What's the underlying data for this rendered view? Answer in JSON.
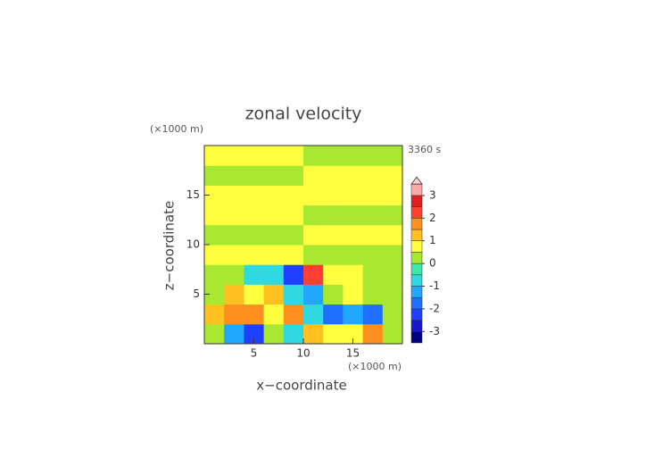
{
  "chart_data": {
    "type": "contour",
    "title": "zonal velocity",
    "time_label": "3360 s",
    "xlabel": "x−coordinate",
    "ylabel": "z−coordinate",
    "x_unit": "(×1000 m)",
    "y_unit": "(×1000 m)",
    "xlim": [
      0,
      20
    ],
    "ylim": [
      0,
      20
    ],
    "xticks": [
      5,
      10,
      15
    ],
    "yticks": [
      5,
      10,
      15
    ],
    "x": [
      1,
      3,
      5,
      7,
      9,
      11,
      13,
      15,
      17,
      19
    ],
    "y": [
      1,
      3,
      5,
      7,
      9,
      11,
      13,
      15,
      17,
      19
    ],
    "z": [
      [
        0.3,
        -1.2,
        -2.2,
        0.3,
        -0.7,
        1.2,
        0.7,
        0.7,
        1.7,
        0.3
      ],
      [
        1.2,
        1.7,
        1.7,
        0.7,
        1.7,
        -0.7,
        -1.7,
        -1.2,
        -1.7,
        0.3
      ],
      [
        0.3,
        1.2,
        0.7,
        1.2,
        -0.7,
        -1.2,
        0.3,
        0.7,
        0.3,
        0.3
      ],
      [
        0.3,
        0.3,
        -0.7,
        -0.7,
        -2.2,
        2.2,
        0.7,
        0.7,
        0.3,
        0.3
      ],
      [
        0.7,
        0.7,
        0.7,
        0.7,
        0.7,
        0.3,
        0.3,
        0.3,
        0.3,
        0.3
      ],
      [
        0.3,
        0.3,
        0.3,
        0.3,
        0.3,
        0.7,
        0.7,
        0.7,
        0.7,
        0.7
      ],
      [
        0.7,
        0.7,
        0.7,
        0.7,
        0.7,
        0.3,
        0.3,
        0.3,
        0.3,
        0.3
      ],
      [
        0.7,
        0.7,
        0.7,
        0.7,
        0.7,
        0.7,
        0.7,
        0.7,
        0.7,
        0.7
      ],
      [
        0.3,
        0.3,
        0.3,
        0.3,
        0.3,
        0.7,
        0.7,
        0.7,
        0.7,
        0.7
      ],
      [
        0.7,
        0.7,
        0.7,
        0.7,
        0.7,
        0.3,
        0.3,
        0.3,
        0.3,
        0.3
      ]
    ],
    "levels": [
      -3.5,
      -3,
      -2.5,
      -2,
      -1.5,
      -1,
      -0.5,
      0,
      0.5,
      1,
      1.5,
      2,
      2.5,
      3,
      3.5
    ],
    "colors": [
      "#000080",
      "#1818c8",
      "#2040ff",
      "#2070ff",
      "#20a8ff",
      "#30d8e0",
      "#40e8a8",
      "#a8e830",
      "#ffff40",
      "#ffc020",
      "#ff9020",
      "#ff4030",
      "#e02020",
      "#ffa8a8"
    ],
    "extend_color": "#ffd0d0",
    "colorbar_ticks": [
      -3,
      -2,
      -1,
      0,
      1,
      2,
      3
    ]
  }
}
